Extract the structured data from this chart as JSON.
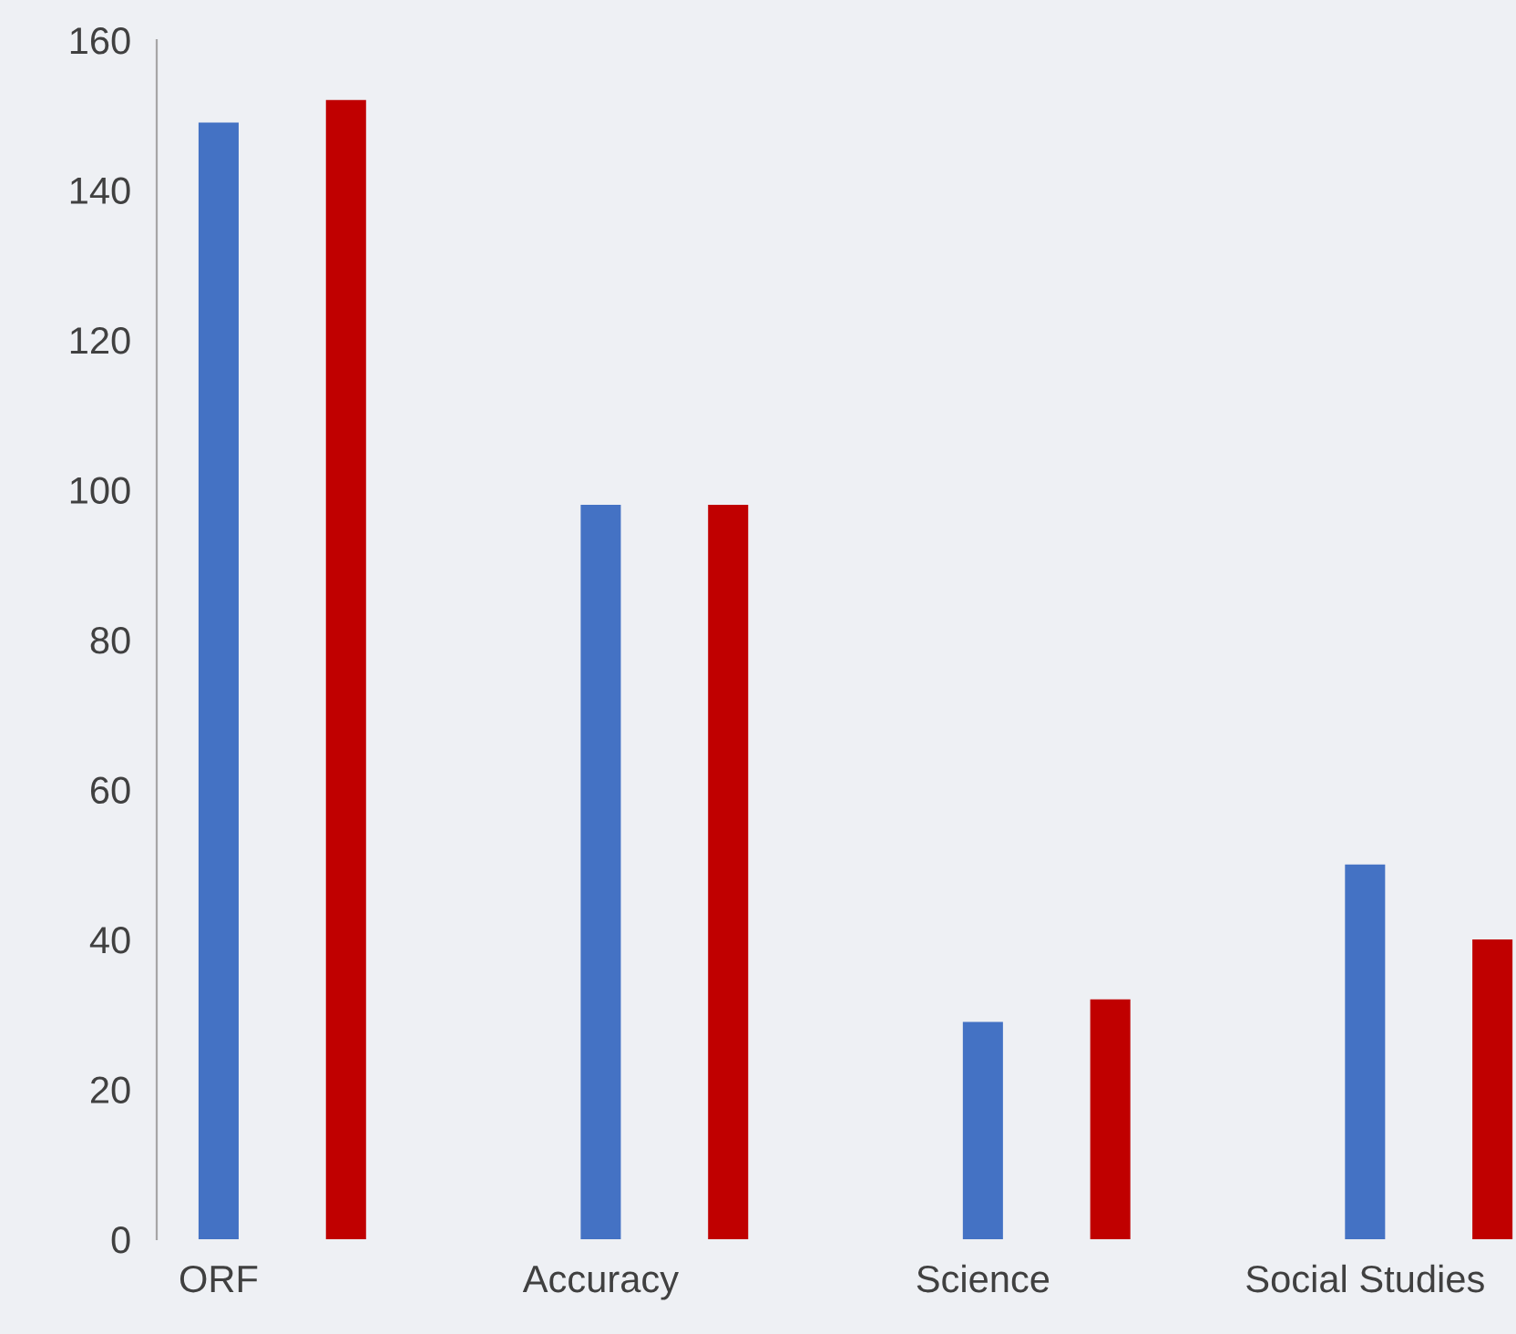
{
  "chart_data": {
    "type": "bar",
    "categories": [
      "ORF",
      "Accuracy",
      "Science",
      "Social Studies"
    ],
    "series": [
      {
        "color": "#4472c4",
        "values": [
          149,
          98,
          29,
          50
        ]
      },
      {
        "color": "#c00000",
        "values": [
          152,
          98,
          32,
          40
        ]
      }
    ],
    "ylim": [
      0,
      160
    ],
    "yticks": [
      0,
      20,
      40,
      60,
      80,
      100,
      120,
      140,
      160
    ],
    "grid": false,
    "legend": false
  }
}
